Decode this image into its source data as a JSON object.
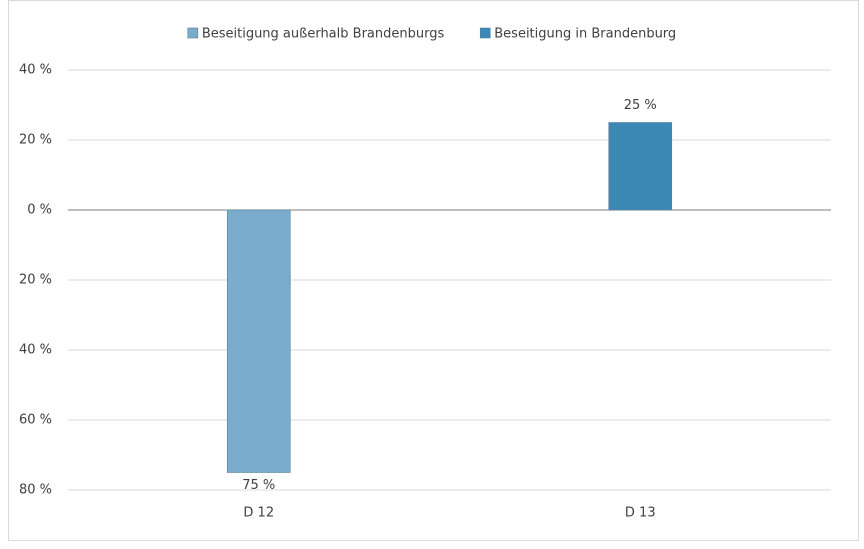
{
  "chart_data": {
    "type": "bar",
    "stacked": true,
    "categories": [
      "D 12",
      "D 13"
    ],
    "series": [
      {
        "name": "Beseitigung außerhalb Brandenburgs",
        "color": "#7aaccb",
        "values": [
          -75,
          null
        ],
        "value_labels": [
          "75 %",
          null
        ]
      },
      {
        "name": "Beseitigung in Brandenburg",
        "color": "#3d89b5",
        "values": [
          null,
          25
        ],
        "value_labels": [
          null,
          "25 %"
        ]
      }
    ],
    "ylim": [
      -80,
      40
    ],
    "yticks": [
      {
        "value": 40,
        "label": "40 %"
      },
      {
        "value": 20,
        "label": "20 %"
      },
      {
        "value": 0,
        "label": "0 %"
      },
      {
        "value": -20,
        "label": "20 %"
      },
      {
        "value": -40,
        "label": "40 %"
      },
      {
        "value": -60,
        "label": "60 %"
      },
      {
        "value": -80,
        "label": "80 %"
      }
    ],
    "grid": true,
    "legend": "top"
  }
}
